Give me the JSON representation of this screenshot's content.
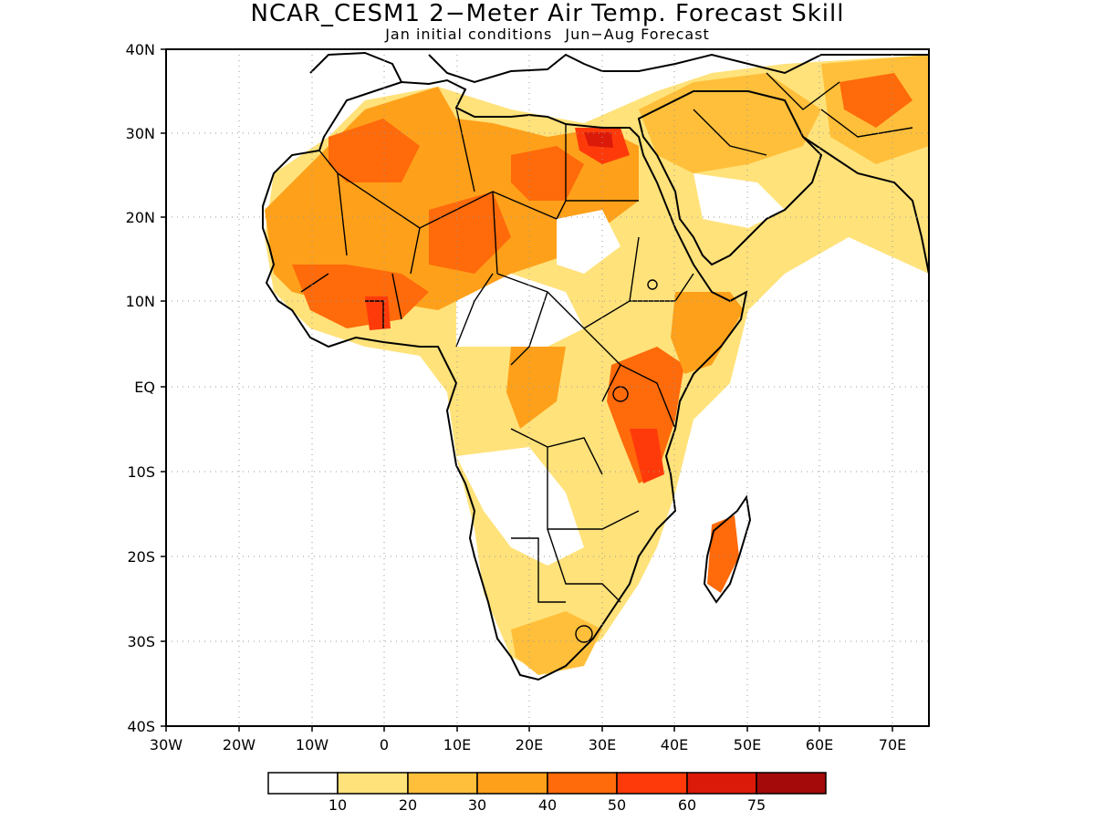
{
  "title": "NCAR_CESM1 2−Meter Air Temp. Forecast Skill",
  "subtitle_left": "Jan initial conditions",
  "subtitle_right": "Jun−Aug Forecast",
  "axes": {
    "lat_labels": [
      "40N",
      "30N",
      "20N",
      "10N",
      "EQ",
      "10S",
      "20S",
      "30S",
      "40S"
    ],
    "lon_labels": [
      "30W",
      "20W",
      "10W",
      "0",
      "10E",
      "20E",
      "30E",
      "40E",
      "50E",
      "60E",
      "70E"
    ]
  },
  "colorbar": {
    "colors": [
      "#ffffff",
      "#ffe27a",
      "#ffbf3a",
      "#ffa01a",
      "#ff6a0a",
      "#ff3a0a",
      "#dc1a0a",
      "#a50a0a"
    ],
    "tick_labels": [
      "10",
      "20",
      "30",
      "40",
      "50",
      "60",
      "75"
    ]
  },
  "map": {
    "region": "Africa",
    "lon_range": [
      -30,
      75
    ],
    "lat_range": [
      -40,
      40
    ],
    "grid": "dotted",
    "ocean_color": "#ffffff",
    "coastline_color": "#000000"
  }
}
